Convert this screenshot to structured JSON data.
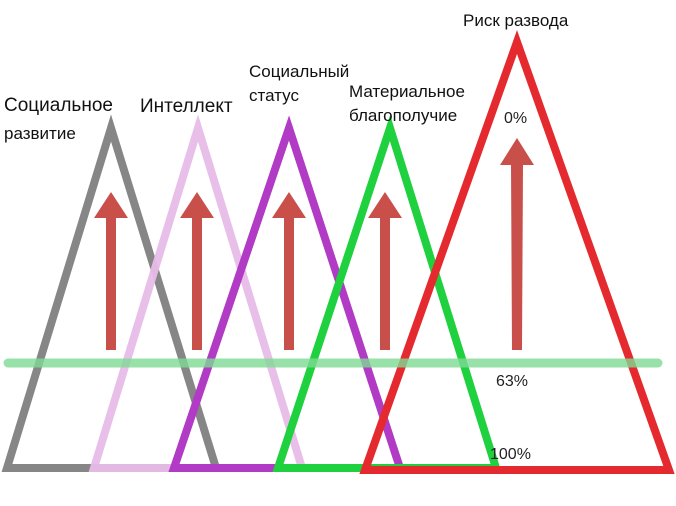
{
  "colors": {
    "social_development": "#868686",
    "intellect": "#e7bce8",
    "social_status": "#b13bc4",
    "material_wellbeing": "#1fd13f",
    "divorce_risk": "#e52a2f",
    "arrow": "#c9504a",
    "threshold_line": "#8fe3a0"
  },
  "labels": {
    "social_development": [
      "Социальное",
      "развитие"
    ],
    "intellect": "Интеллект",
    "social_status": [
      "Социальный",
      "статус"
    ],
    "material_wellbeing": [
      "Материальное",
      "благополучие"
    ],
    "divorce_risk": "Риск развода"
  },
  "scale": {
    "top": "0%",
    "middle": "63%",
    "bottom": "100%"
  }
}
